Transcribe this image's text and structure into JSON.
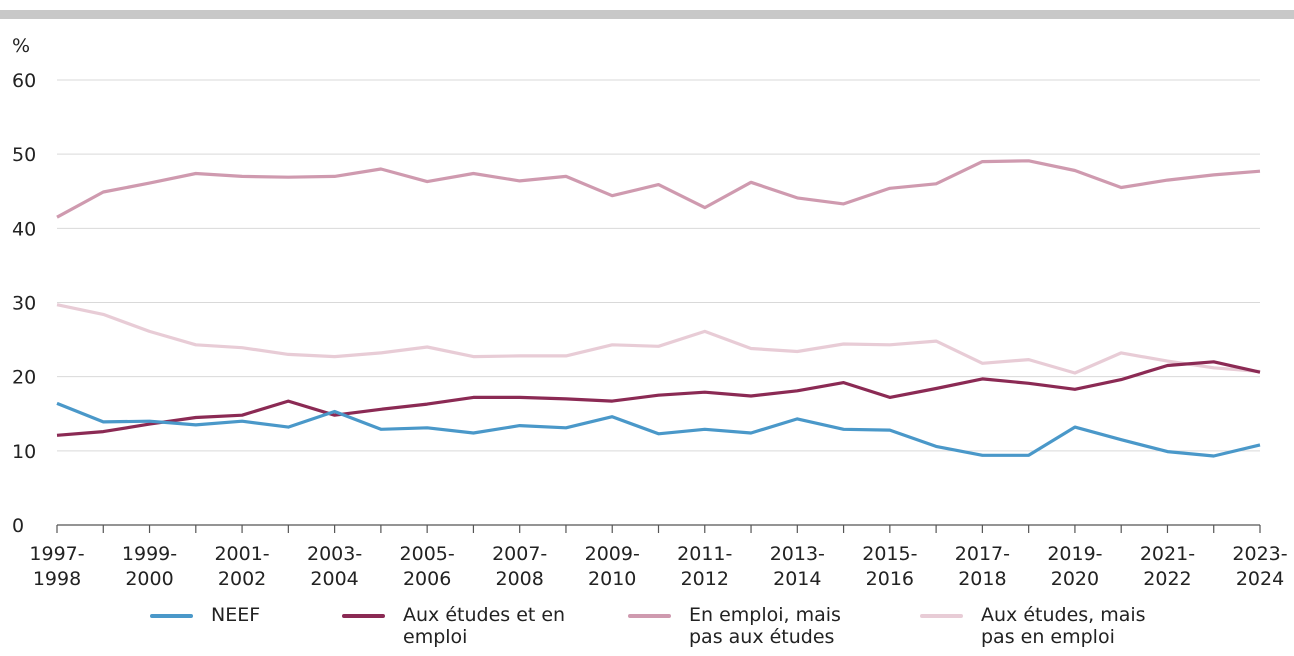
{
  "chart_data": {
    "type": "line",
    "y_label": "%",
    "categories": [
      "1997-1998",
      null,
      "1999-2000",
      null,
      "2001-2002",
      null,
      "2003-2004",
      null,
      "2005-2006",
      null,
      "2007-2008",
      null,
      "2009-2010",
      null,
      "2011-2012",
      null,
      "2013-2014",
      null,
      "2015-2016",
      null,
      "2017-2018",
      null,
      "2019-2020",
      null,
      "2021-2022",
      null,
      "2023-2024"
    ],
    "series": [
      {
        "name": "NEEF",
        "color": "#4a98c9",
        "values": [
          16.4,
          13.9,
          14.0,
          13.5,
          14.0,
          13.2,
          15.3,
          12.9,
          13.1,
          12.4,
          13.4,
          13.1,
          14.6,
          12.3,
          12.9,
          12.4,
          14.3,
          12.9,
          12.8,
          10.6,
          9.4,
          9.4,
          13.2,
          11.5,
          9.9,
          9.3,
          10.8
        ]
      },
      {
        "name": "Aux études et en emploi",
        "color": "#8b2a54",
        "values": [
          12.1,
          12.6,
          13.6,
          14.5,
          14.8,
          16.7,
          14.8,
          15.6,
          16.3,
          17.2,
          17.2,
          17.0,
          16.7,
          17.5,
          17.9,
          17.4,
          18.1,
          19.2,
          17.2,
          18.4,
          19.7,
          19.1,
          18.3,
          19.6,
          21.5,
          22.0,
          20.6
        ]
      },
      {
        "name": "En emploi, mais pas aux études",
        "color": "#cf9aaf",
        "values": [
          41.5,
          44.9,
          46.1,
          47.4,
          47.0,
          46.9,
          47.0,
          48.0,
          46.3,
          47.4,
          46.4,
          47.0,
          44.4,
          45.9,
          42.8,
          46.2,
          44.1,
          43.3,
          45.4,
          46.0,
          49.0,
          49.1,
          47.8,
          45.5,
          46.5,
          47.2,
          47.7
        ]
      },
      {
        "name": "Aux études, mais pas en emploi",
        "color": "#e8ccd6",
        "values": [
          29.7,
          28.4,
          26.1,
          24.3,
          23.9,
          23.0,
          22.7,
          23.2,
          24.0,
          22.7,
          22.8,
          22.8,
          24.3,
          24.1,
          26.1,
          23.8,
          23.4,
          24.4,
          24.3,
          24.8,
          21.8,
          22.3,
          20.5,
          23.2,
          22.1,
          21.2,
          20.7
        ]
      }
    ],
    "ylim": [
      0,
      60
    ],
    "yticks": [
      0,
      10,
      20,
      30,
      40,
      50,
      60
    ],
    "grid": true
  }
}
